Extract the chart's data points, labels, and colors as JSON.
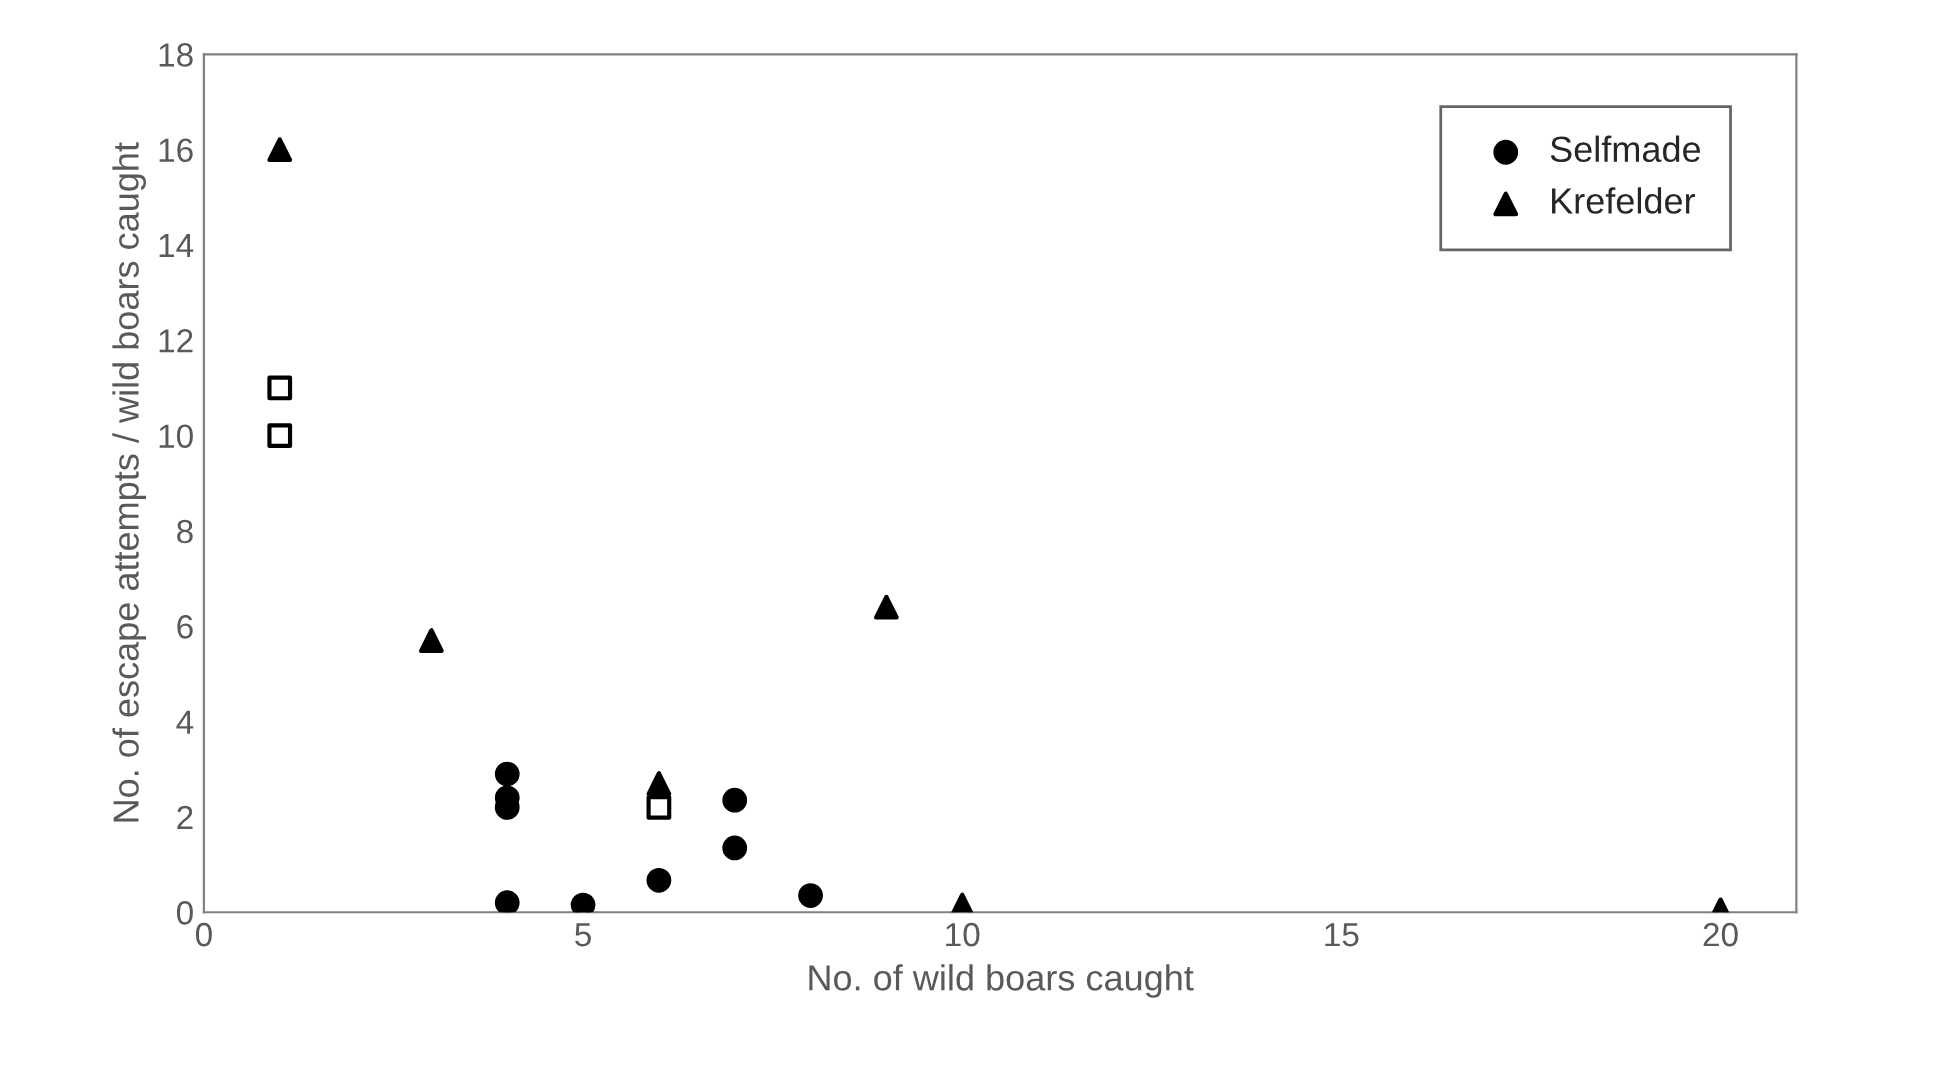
{
  "chart_data": {
    "type": "scatter",
    "xlabel": "No. of wild boars caught",
    "ylabel": "No. of escape attempts / wild boars caught",
    "xlim": [
      0,
      21
    ],
    "xticks": [
      0,
      5,
      10,
      15,
      20
    ],
    "ylim": [
      0,
      18
    ],
    "yticks": [
      0,
      2,
      4,
      6,
      8,
      10,
      12,
      14,
      16,
      18
    ],
    "grid": false,
    "legend": "top right",
    "series": [
      {
        "name": "Selfmade",
        "color": "#000000",
        "marker": "circle",
        "x": [
          4,
          4,
          4,
          4,
          5,
          6,
          7,
          7,
          8
        ],
        "values": [
          2.9,
          2.4,
          2.2,
          0.2,
          0.15,
          0.67,
          2.35,
          1.35,
          0.35
        ]
      },
      {
        "color": "#000000",
        "marker": "square",
        "x": [
          1,
          1,
          6
        ],
        "values": [
          11,
          10,
          2.2
        ]
      },
      {
        "name": "Krefelder",
        "color": "#000000",
        "marker": "triangle",
        "x": [
          1,
          3,
          6,
          9,
          10,
          20
        ],
        "values": [
          16,
          5.7,
          2.7,
          6.4,
          0.15,
          0.05
        ]
      }
    ]
  }
}
